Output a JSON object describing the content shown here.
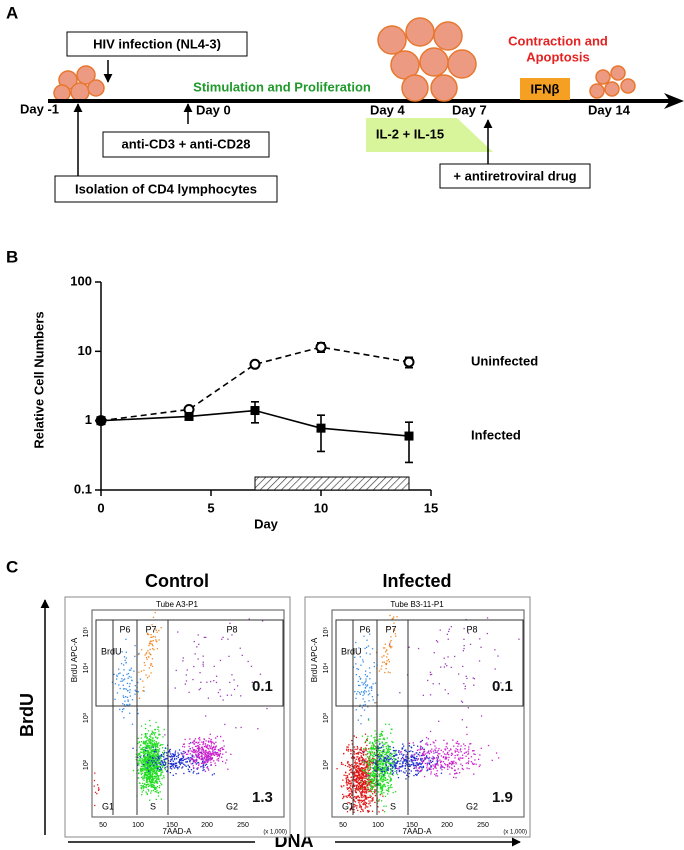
{
  "panel_a": {
    "label": "A",
    "hiv": "HIV infection (NL4-3)",
    "day_m1": "Day -1",
    "day_0": "Day 0",
    "day_4": "Day 4",
    "day_7": "Day 7",
    "day_14": "Day 14",
    "stimulation": "Stimulation and Proliferation",
    "contraction": [
      "Contraction and",
      "Apoptosis"
    ],
    "ifn": "IFNβ",
    "il": "IL-2 + IL-15",
    "anti": "anti-CD3 + anti-CD28",
    "drug": "+ antiretroviral drug",
    "isolation": "Isolation of CD4 lymphocytes"
  },
  "chart_data": {
    "type": "line",
    "label": "B",
    "y_label": "Relative Cell Numbers",
    "x_label": "Day",
    "x": [
      0,
      4,
      7,
      10,
      14
    ],
    "series": [
      {
        "name": "Uninfected",
        "color": "#000000",
        "dashed": true,
        "marker": "circle-open",
        "values": [
          1,
          1.45,
          6.5,
          11.5,
          7
        ],
        "errors": [
          0.05,
          0.1,
          0.6,
          1.8,
          1.2
        ]
      },
      {
        "name": "Infected",
        "color": "#000000",
        "dashed": false,
        "marker": "square",
        "values": [
          1,
          1.15,
          1.4,
          0.78,
          0.6
        ],
        "errors": [
          0.03,
          0.1,
          0.47,
          0.42,
          0.35
        ]
      }
    ],
    "treatment_period": [
      7,
      14
    ],
    "xlim": [
      0,
      15
    ],
    "xticks": [
      0,
      5,
      10,
      15
    ],
    "ylim": [
      0.1,
      100
    ],
    "yticks": [
      0.1,
      1,
      10,
      100
    ],
    "log_y": true
  },
  "panel_c": {
    "label": "C",
    "x_title": "DNA",
    "y_title": "BrdU",
    "plots": [
      {
        "title": "Control",
        "tube": "Tube A3-P1",
        "top_value": 0.1,
        "bottom_value": 1.3
      },
      {
        "title": "Infected",
        "tube": "Tube B3-11-P1",
        "top_value": 0.1,
        "bottom_value": 1.9
      }
    ],
    "gates": [
      "P6",
      "P7",
      "P8"
    ],
    "brdu_gate": "BrdU",
    "phases": [
      "G1",
      "S",
      "G2"
    ],
    "y_axis_label": "BrdU APC-A",
    "x_axis_label": "7AAD-A",
    "x_scale_note": "(x 1,000)",
    "x_tick_labels": [
      50,
      100,
      150,
      200,
      250
    ],
    "y_tick_labels": [
      "10²",
      "10³",
      "10⁴",
      "10⁵"
    ]
  }
}
